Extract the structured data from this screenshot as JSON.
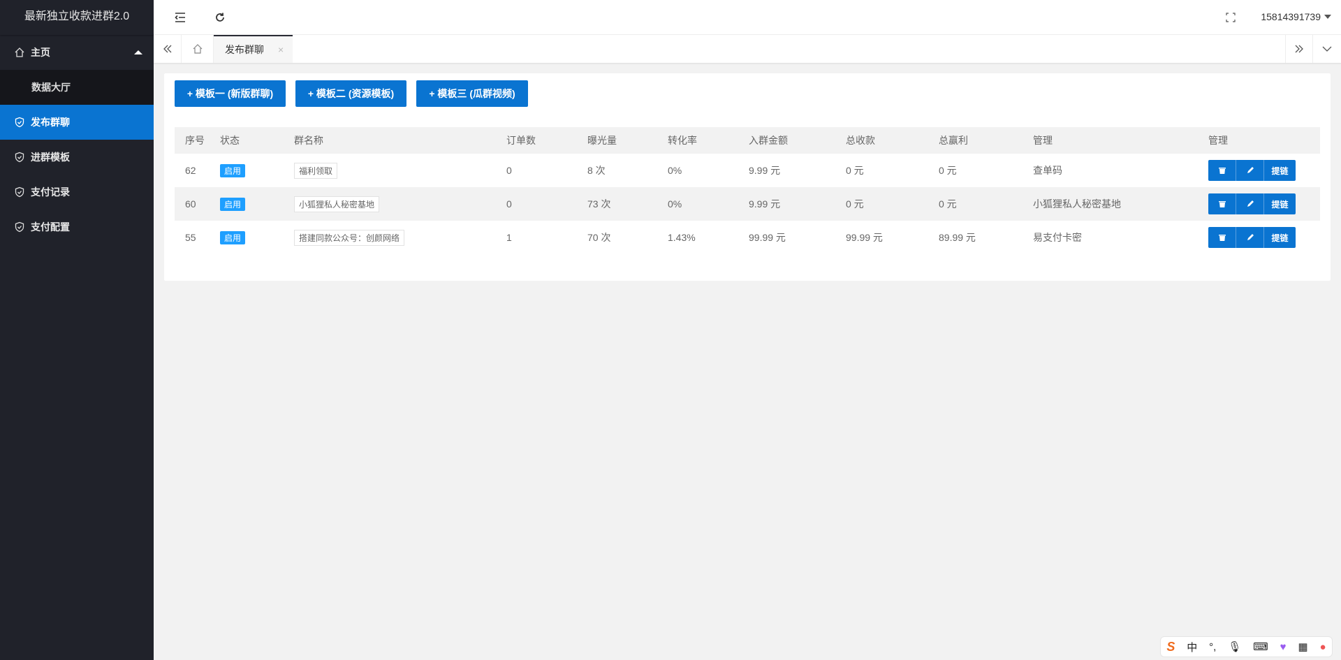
{
  "app": {
    "title": "最新独立收款进群2.0"
  },
  "sidebar": {
    "items": [
      {
        "label": "主页",
        "icon": "home-icon",
        "expanded": true,
        "children": [
          {
            "label": "数据大厅"
          }
        ]
      },
      {
        "label": "发布群聊",
        "icon": "shield-icon",
        "active": true
      },
      {
        "label": "进群模板",
        "icon": "shield-icon"
      },
      {
        "label": "支付记录",
        "icon": "shield-icon"
      },
      {
        "label": "支付配置",
        "icon": "shield-icon"
      }
    ]
  },
  "header": {
    "user": "15814391739"
  },
  "tabs": [
    {
      "label": "发布群聊",
      "close": "×"
    }
  ],
  "toolbar": {
    "buttons": [
      "+ 模板一 (新版群聊)",
      "+ 模板二 (资源模板)",
      "+ 模板三 (瓜群视频)"
    ]
  },
  "table": {
    "columns": [
      "序号",
      "状态",
      "群名称",
      "订单数",
      "曝光量",
      "转化率",
      "入群金额",
      "总收款",
      "总赢利",
      "管理",
      "管理"
    ],
    "rows": [
      {
        "id": "62",
        "status": "启用",
        "name": "福利领取",
        "orders": "0",
        "views": "8 次",
        "rate": "0%",
        "price": "9.99 元",
        "total": "0 元",
        "profit": "0 元",
        "manage": "查单码"
      },
      {
        "id": "60",
        "status": "启用",
        "name": "小狐狸私人秘密基地",
        "orders": "0",
        "views": "73 次",
        "rate": "0%",
        "price": "9.99 元",
        "total": "0 元",
        "profit": "0 元",
        "manage": "小狐狸私人秘密基地"
      },
      {
        "id": "55",
        "status": "启用",
        "name": "搭建同款公众号：创颜网络",
        "orders": "1",
        "views": "70 次",
        "rate": "1.43%",
        "price": "99.99 元",
        "total": "99.99 元",
        "profit": "89.99 元",
        "manage": "易支付卡密"
      }
    ],
    "link_label": "提链"
  },
  "ime": {
    "lang": "中",
    "punct": "°,"
  },
  "colors": {
    "accent": "#0a74d1",
    "sidebar": "#20222a",
    "badge": "#1e9fff"
  }
}
